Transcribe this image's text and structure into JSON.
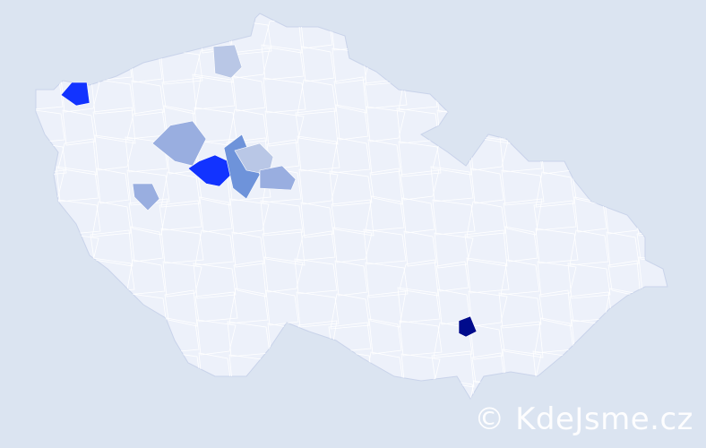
{
  "watermark": "© KdeJsme.cz",
  "colors": {
    "background": "#dbe4f1",
    "base_fill": "#edf1fa",
    "border": "#c9d3ea",
    "level_1": "#b9c7e6",
    "level_2": "#99aee0",
    "level_3": "#6e93da",
    "level_4": "#1233ff",
    "level_5": "#000b8c"
  },
  "regions": [
    {
      "name": "north-west-district",
      "level": "level_4"
    },
    {
      "name": "north-district",
      "level": "level_1"
    },
    {
      "name": "west-central-district",
      "level": "level_2"
    },
    {
      "name": "central-district",
      "level": "level_4"
    },
    {
      "name": "central-east-district-a",
      "level": "level_3"
    },
    {
      "name": "central-east-district-b",
      "level": "level_1"
    },
    {
      "name": "central-east-district-c",
      "level": "level_2"
    },
    {
      "name": "south-west-district",
      "level": "level_2"
    },
    {
      "name": "south-moravia-district",
      "level": "level_5"
    }
  ]
}
